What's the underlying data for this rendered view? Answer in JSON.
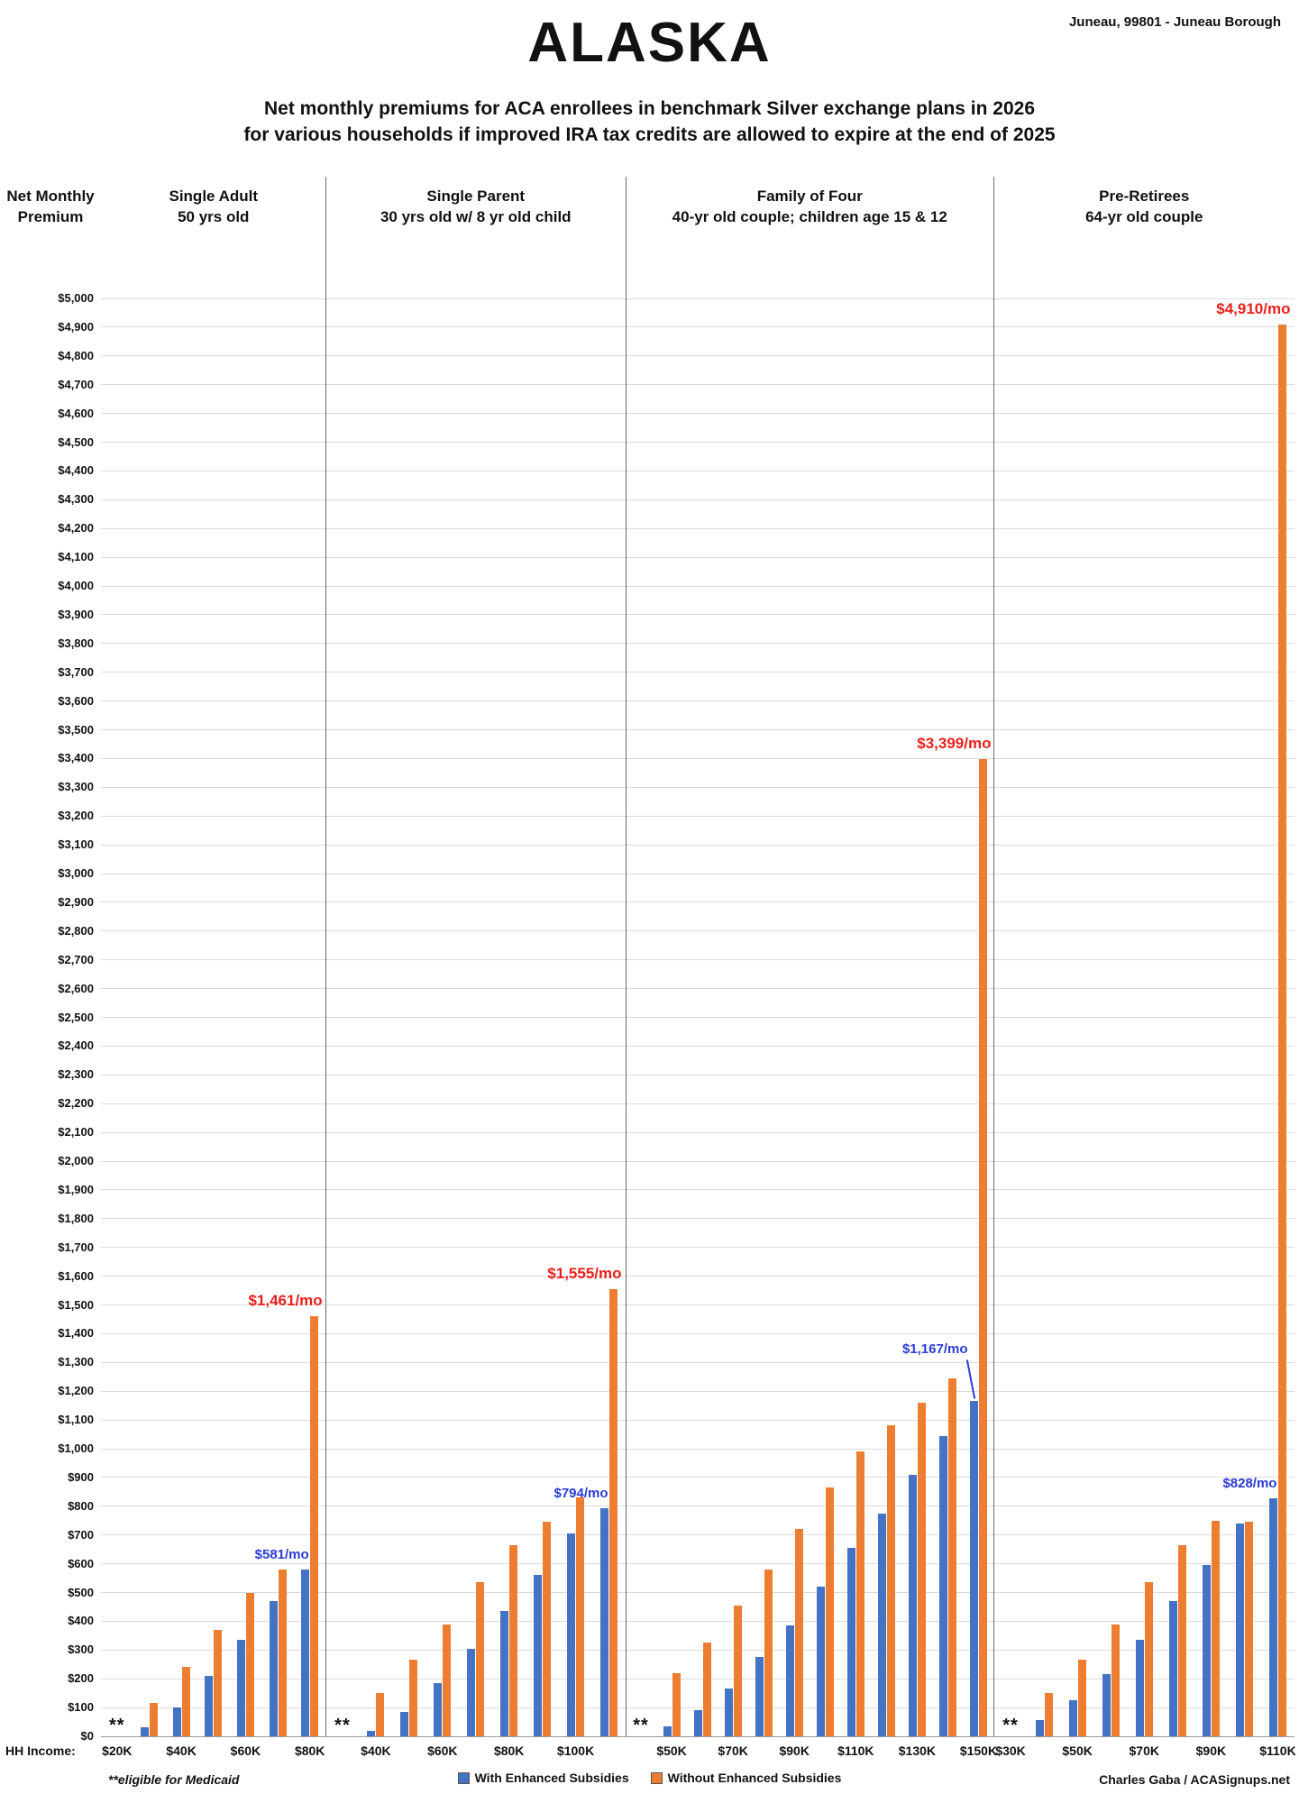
{
  "header": {
    "location": "Juneau, 99801 - Juneau Borough",
    "title": "ALASKA",
    "subtitle_line1": "Net monthly premiums for ACA enrollees in benchmark Silver exchange plans in 2026",
    "subtitle_line2": "for various households if improved IRA tax credits are allowed to expire at the end of 2025"
  },
  "y_axis": {
    "title_line1": "Net Monthly",
    "title_line2": "Premium",
    "min": 0,
    "max": 5000,
    "step": 100
  },
  "x_axis": {
    "label": "HH Income:"
  },
  "footer": {
    "medicaid_note": "**eligible for Medicaid",
    "credit": "Charles Gaba / ACASignups.net"
  },
  "legend": [
    {
      "label": "With Enhanced Subsidies",
      "color": "#4472C4"
    },
    {
      "label": "Without Enhanced Subsidies",
      "color": "#ED7D31"
    }
  ],
  "chart_data": {
    "type": "bar",
    "title": "ALASKA - Net monthly premiums for ACA enrollees in benchmark Silver exchange plans in 2026",
    "ylabel": "Net Monthly Premium",
    "xlabel": "HH Income",
    "ylim": [
      0,
      5000
    ],
    "grid": true,
    "medicaid_marker": "**",
    "series_names": [
      "With Enhanced Subsidies",
      "Without Enhanced Subsidies"
    ],
    "colors": {
      "with_enhanced": "#4472C4",
      "without_enhanced": "#ED7D31",
      "annotation_blue": "#2A3BD8",
      "annotation_red": "#E8211B"
    },
    "panels": [
      {
        "title_line1": "Single Adult",
        "title_line2": "50 yrs old",
        "groups": [
          {
            "label": "$20K",
            "medicaid": true
          },
          {
            "label": "",
            "with": 30,
            "without": 115
          },
          {
            "label": "$40K",
            "with": 100,
            "without": 240
          },
          {
            "label": "",
            "with": 210,
            "without": 370
          },
          {
            "label": "$60K",
            "with": 335,
            "without": 500
          },
          {
            "label": "",
            "with": 470,
            "without": 580
          },
          {
            "label": "$80K",
            "with": 581,
            "without": 1461
          }
        ]
      },
      {
        "title_line1": "Single Parent",
        "title_line2": "30 yrs old w/ 8 yr old child",
        "groups": [
          {
            "label": "",
            "medicaid": true
          },
          {
            "label": "$40K",
            "with": 20,
            "without": 150
          },
          {
            "label": "",
            "with": 85,
            "without": 265
          },
          {
            "label": "$60K",
            "with": 185,
            "without": 390
          },
          {
            "label": "",
            "with": 305,
            "without": 535
          },
          {
            "label": "$80K",
            "with": 435,
            "without": 665
          },
          {
            "label": "",
            "with": 560,
            "without": 745
          },
          {
            "label": "$100K",
            "with": 705,
            "without": 830
          },
          {
            "label": "",
            "with": 794,
            "without": 1555
          }
        ]
      },
      {
        "title_line1": "Family of Four",
        "title_line2": "40-yr old couple; children age 15 & 12",
        "groups": [
          {
            "label": "",
            "medicaid": true
          },
          {
            "label": "$50K",
            "with": 35,
            "without": 220
          },
          {
            "label": "",
            "with": 90,
            "without": 325
          },
          {
            "label": "$70K",
            "with": 165,
            "without": 455
          },
          {
            "label": "",
            "with": 275,
            "without": 580
          },
          {
            "label": "$90K",
            "with": 385,
            "without": 720
          },
          {
            "label": "",
            "with": 520,
            "without": 865
          },
          {
            "label": "$110K",
            "with": 655,
            "without": 990
          },
          {
            "label": "",
            "with": 775,
            "without": 1080
          },
          {
            "label": "$130K",
            "with": 910,
            "without": 1160
          },
          {
            "label": "",
            "with": 1045,
            "without": 1245
          },
          {
            "label": "$150K",
            "with": 1167,
            "without": 3399
          }
        ]
      },
      {
        "title_line1": "Pre-Retirees",
        "title_line2": "64-yr old couple",
        "groups": [
          {
            "label": "$30K",
            "medicaid": true
          },
          {
            "label": "",
            "with": 55,
            "without": 150
          },
          {
            "label": "$50K",
            "with": 125,
            "without": 265
          },
          {
            "label": "",
            "with": 215,
            "without": 390
          },
          {
            "label": "$70K",
            "with": 335,
            "without": 535
          },
          {
            "label": "",
            "with": 470,
            "without": 665
          },
          {
            "label": "$90K",
            "with": 595,
            "without": 750
          },
          {
            "label": "",
            "with": 740,
            "without": 745
          },
          {
            "label": "$110K",
            "with": 828,
            "without": 4910
          }
        ]
      }
    ],
    "annotations": [
      {
        "panel": 0,
        "group": 6,
        "series": "with",
        "text": "$581/mo"
      },
      {
        "panel": 0,
        "group": 6,
        "series": "without",
        "text": "$1,461/mo"
      },
      {
        "panel": 1,
        "group": 8,
        "series": "with",
        "text": "$794/mo"
      },
      {
        "panel": 1,
        "group": 8,
        "series": "without",
        "text": "$1,555/mo"
      },
      {
        "panel": 2,
        "group": 11,
        "series": "with",
        "text": "$1,167/mo",
        "arrow": true
      },
      {
        "panel": 2,
        "group": 11,
        "series": "without",
        "text": "$3,399/mo"
      },
      {
        "panel": 3,
        "group": 8,
        "series": "with",
        "text": "$828/mo"
      },
      {
        "panel": 3,
        "group": 8,
        "series": "without",
        "text": "$4,910/mo"
      }
    ]
  }
}
